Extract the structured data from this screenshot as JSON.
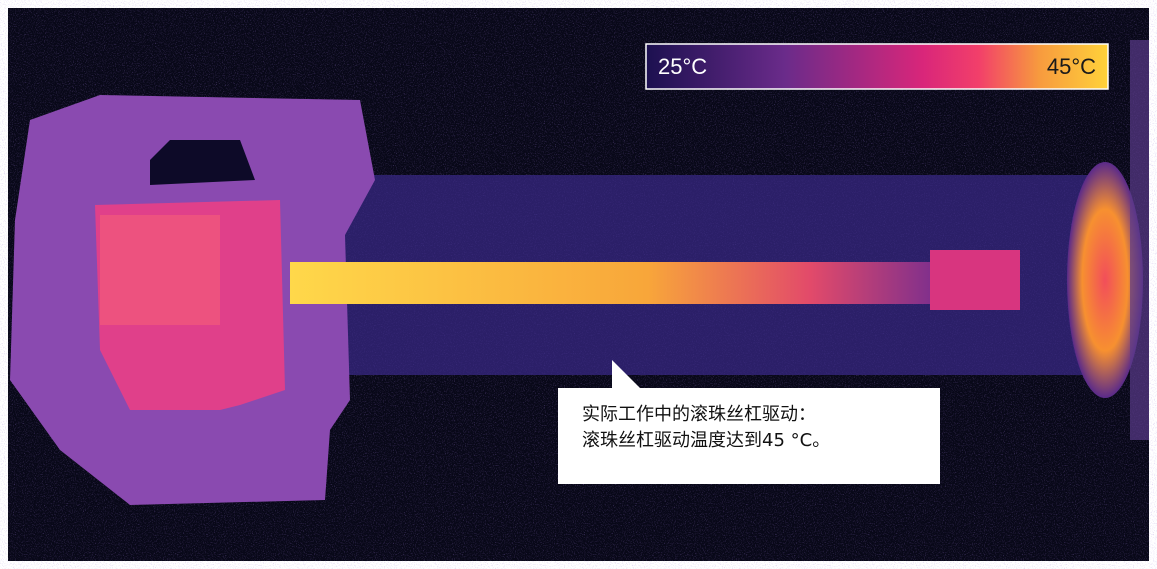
{
  "colorbar": {
    "min_label": "25°C",
    "max_label": "45°C"
  },
  "callout": {
    "lines": [
      "实际工作中的滚珠丝杠驱动：",
      "滚珠丝杠驱动温度达到45 °C。"
    ]
  }
}
